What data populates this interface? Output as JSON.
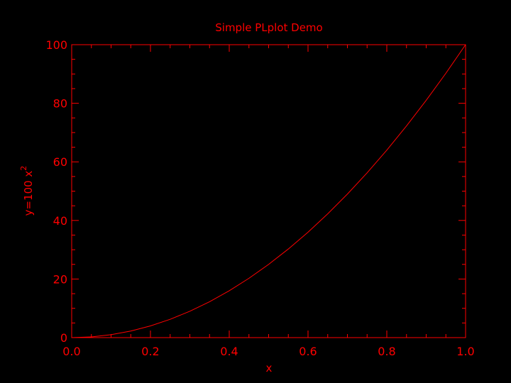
{
  "chart_data": {
    "type": "line",
    "title": "Simple PLplot Demo",
    "xlabel": "x",
    "ylabel": "y=100 x",
    "ylabel_superscript": "2",
    "xlim": [
      0,
      1
    ],
    "ylim": [
      0,
      100
    ],
    "x_ticks": [
      0,
      0.2,
      0.4,
      0.6,
      0.8,
      1
    ],
    "x_tick_labels": [
      "0.0",
      "0.2",
      "0.4",
      "0.6",
      "0.8",
      "1.0"
    ],
    "x_minor_step": 0.05,
    "y_ticks": [
      0,
      20,
      40,
      60,
      80,
      100
    ],
    "y_tick_labels": [
      "0",
      "20",
      "40",
      "60",
      "80",
      "100"
    ],
    "y_minor_step": 5,
    "grid": false,
    "colors": {
      "background": "#000000",
      "foreground": "#ff0000"
    },
    "series": [
      {
        "x": [
          0,
          0.05,
          0.1,
          0.15,
          0.2,
          0.25,
          0.3,
          0.35,
          0.4,
          0.45,
          0.5,
          0.55,
          0.6,
          0.65,
          0.7,
          0.75,
          0.8,
          0.85,
          0.9,
          0.95,
          1
        ],
        "values": [
          0,
          0.25,
          1,
          2.25,
          4,
          6.25,
          9,
          12.25,
          16,
          20.25,
          25,
          30.25,
          36,
          42.25,
          49,
          56.25,
          64,
          72.25,
          81,
          90.25,
          100
        ]
      }
    ]
  }
}
